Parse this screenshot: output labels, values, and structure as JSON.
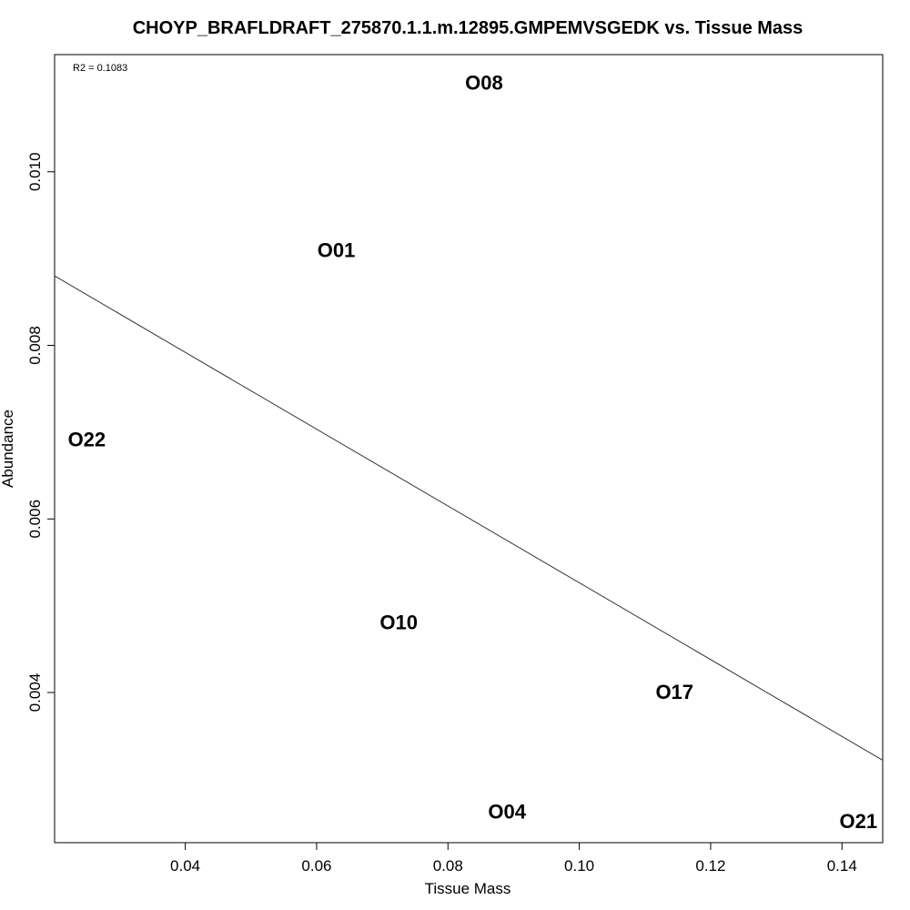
{
  "chart_data": {
    "type": "scatter",
    "title": "CHOYP_BRAFLDRAFT_275870.1.1.m.12895.GMPEMVSGEDK vs. Tissue Mass",
    "xlabel": "Tissue Mass",
    "ylabel": "Abundance",
    "annotation": "R2 = 0.1083",
    "xlim": [
      0.0201,
      0.1462
    ],
    "ylim": [
      0.00227,
      0.01135
    ],
    "x_ticks": [
      0.04,
      0.06,
      0.08,
      0.1,
      0.12,
      0.14
    ],
    "x_tick_labels": [
      "0.04",
      "0.06",
      "0.08",
      "0.10",
      "0.12",
      "0.14"
    ],
    "y_ticks": [
      0.004,
      0.006,
      0.008,
      0.01
    ],
    "y_tick_labels": [
      "0.004",
      "0.006",
      "0.008",
      "0.010"
    ],
    "grid": false,
    "points": [
      {
        "label": "O08",
        "x": 0.0855,
        "y": 0.01103
      },
      {
        "label": "O01",
        "x": 0.063,
        "y": 0.0091
      },
      {
        "label": "O22",
        "x": 0.025,
        "y": 0.00692
      },
      {
        "label": "O10",
        "x": 0.0725,
        "y": 0.00481
      },
      {
        "label": "O17",
        "x": 0.1145,
        "y": 0.00401
      },
      {
        "label": "O04",
        "x": 0.089,
        "y": 0.00263
      },
      {
        "label": "O21",
        "x": 0.1425,
        "y": 0.00252
      }
    ],
    "fit_line": {
      "x": [
        0.0201,
        0.1462
      ],
      "y": [
        0.0088,
        0.00322
      ]
    },
    "colors": {
      "axis": "#000000",
      "line": "#333333",
      "text": "#000000"
    }
  }
}
